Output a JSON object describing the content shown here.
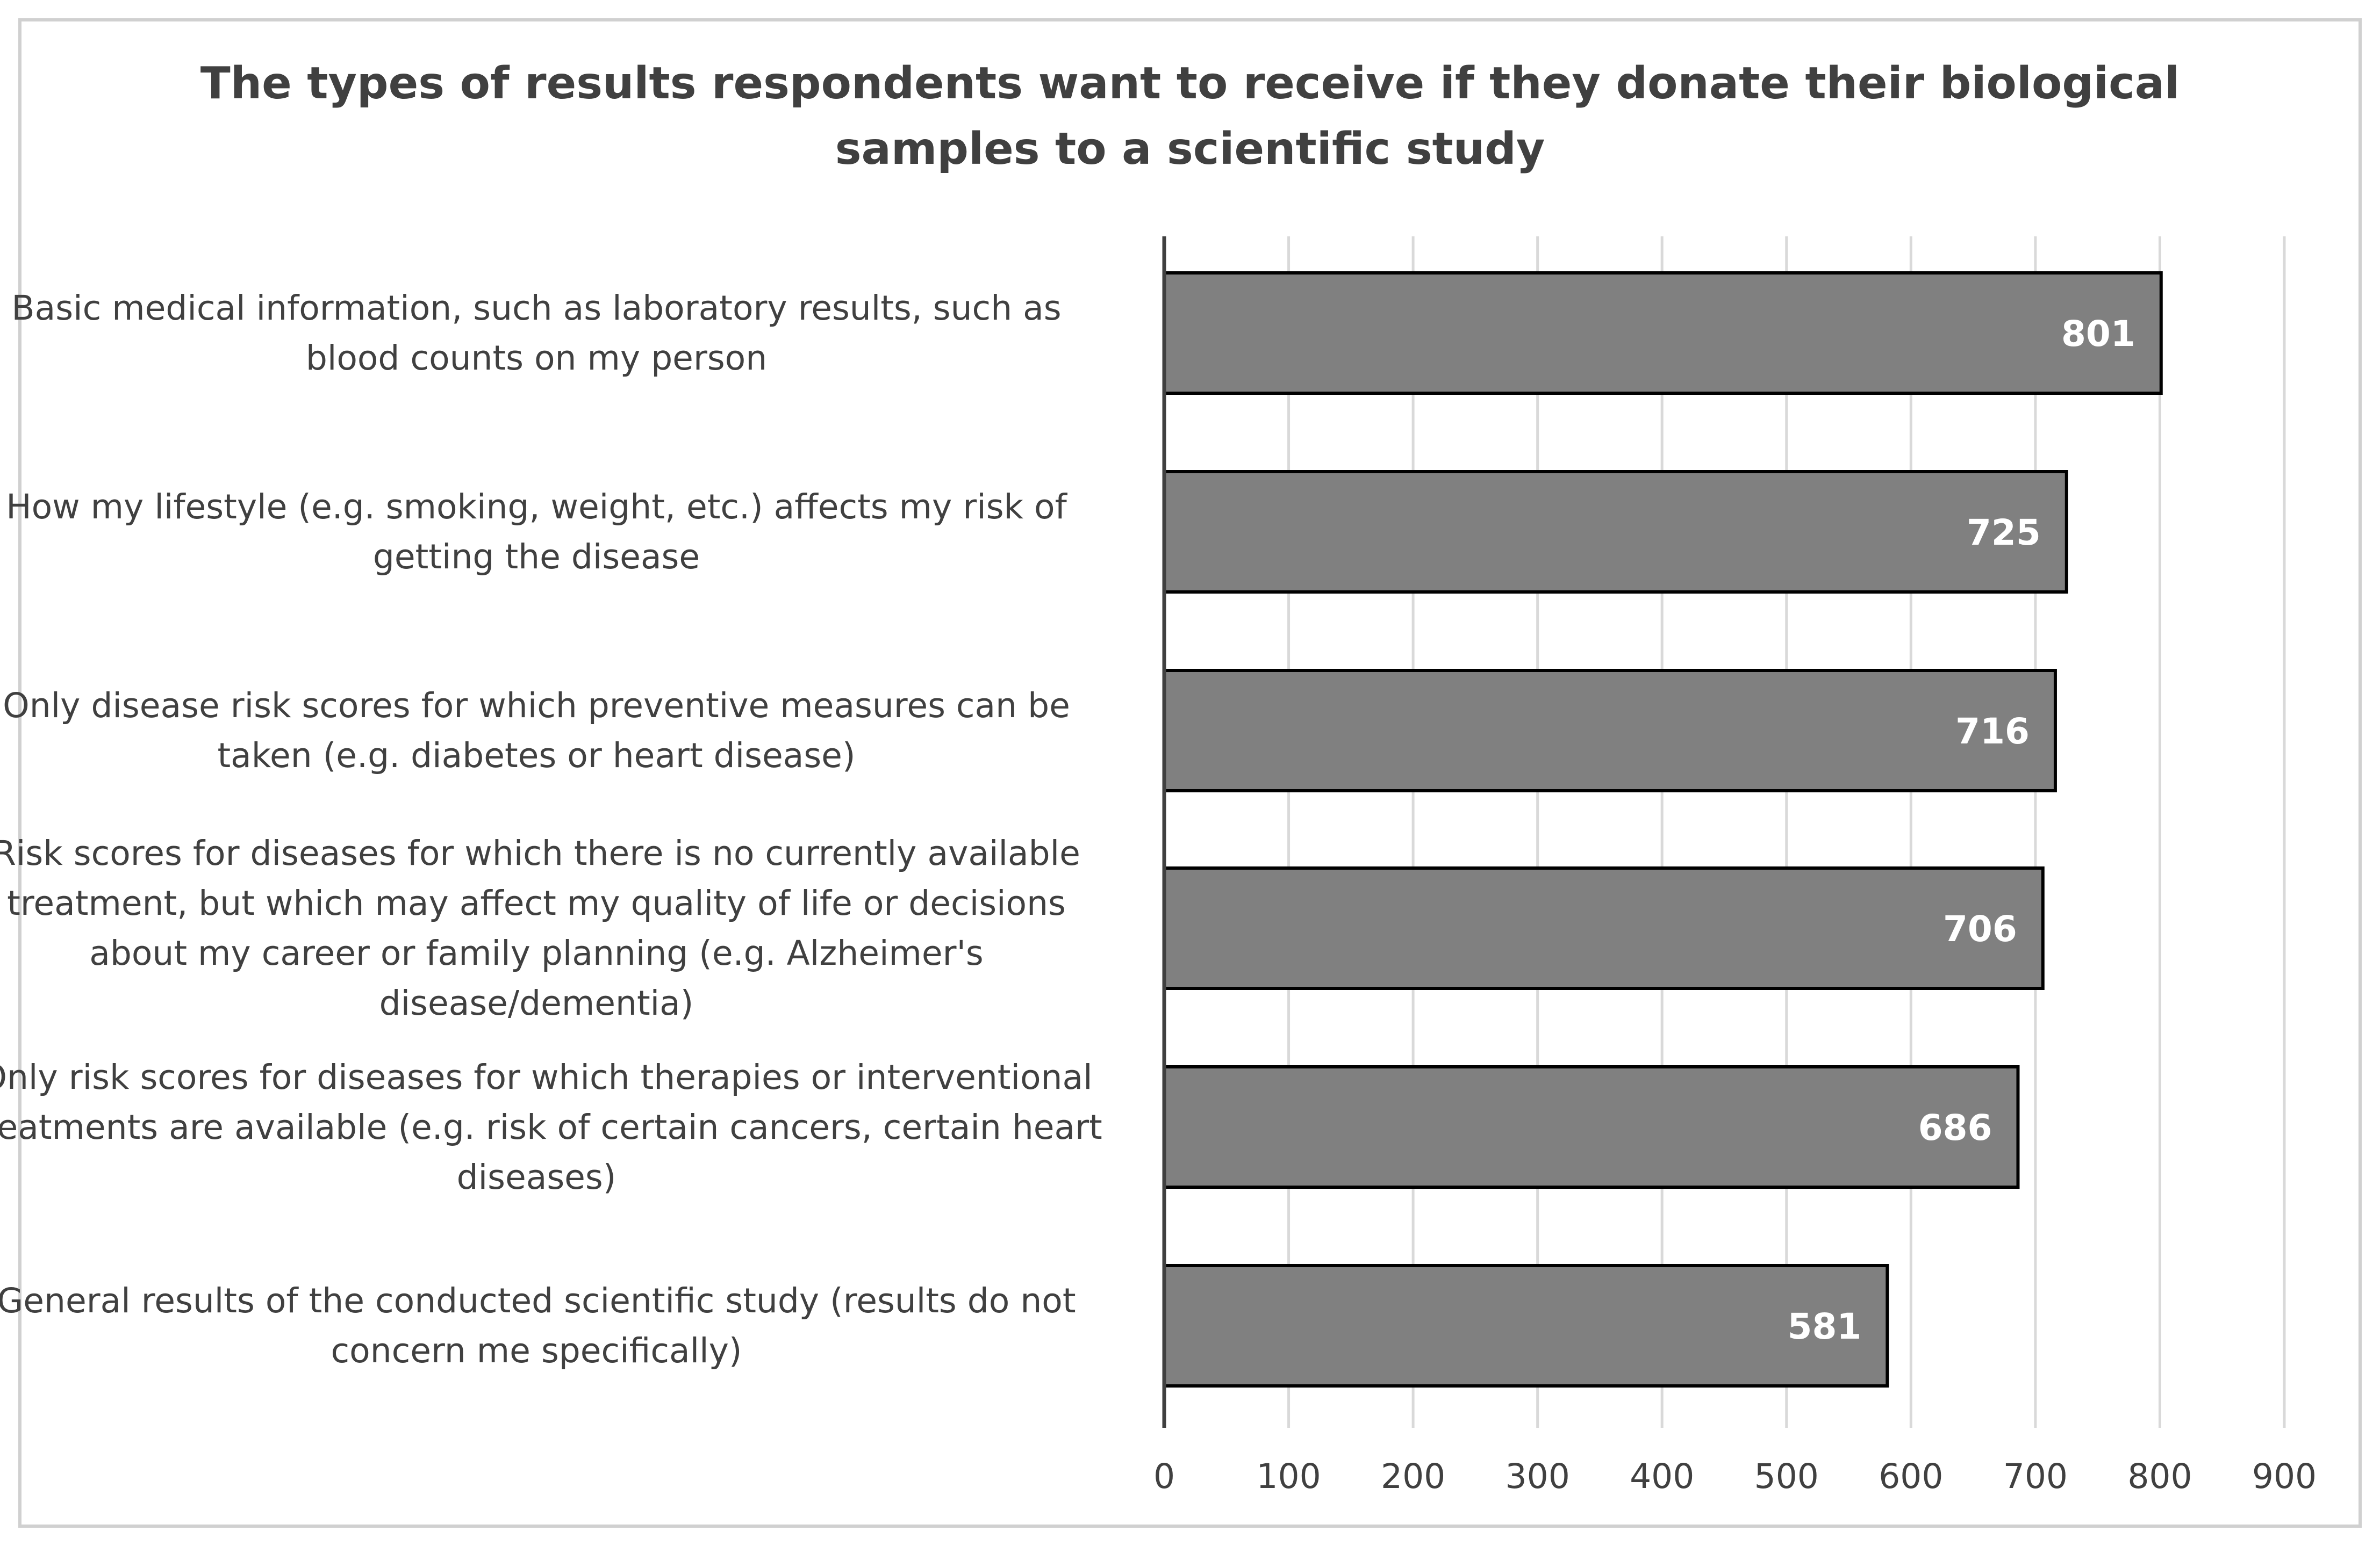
{
  "chart_data": {
    "type": "bar",
    "orientation": "horizontal",
    "title_lines": [
      "The types of results respondents want to receive if they donate their biological",
      "samples to a scientific study"
    ],
    "categories": [
      {
        "lines": [
          "Basic medical information, such as laboratory results, such as",
          "blood counts on my person"
        ]
      },
      {
        "lines": [
          "How my lifestyle (e.g. smoking, weight, etc.) affects my risk of",
          "getting the disease"
        ]
      },
      {
        "lines": [
          "Only disease risk scores for which preventive measures can be",
          "taken (e.g. diabetes or heart disease)"
        ]
      },
      {
        "lines": [
          "Risk scores for diseases for which there is no currently available",
          "treatment, but which may affect my quality of life or decisions",
          "about my career or family planning (e.g. Alzheimer's",
          "disease/dementia)"
        ]
      },
      {
        "lines": [
          "Only risk scores for diseases for which therapies or interventional",
          "treatments are available (e.g. risk of certain cancers, certain heart",
          "diseases)"
        ]
      },
      {
        "lines": [
          "General results of the conducted scientific study (results do not",
          "concern me specifically)"
        ]
      }
    ],
    "values": [
      801,
      725,
      716,
      706,
      686,
      581
    ],
    "data_labels": [
      "801",
      "725",
      "716",
      "706",
      "686",
      "581"
    ],
    "xlim": [
      0,
      900
    ],
    "x_ticks": [
      "0",
      "100",
      "200",
      "300",
      "400",
      "500",
      "600",
      "700",
      "800",
      "900"
    ],
    "grid": "vertical",
    "legend": "none",
    "colors": {
      "bar_fill": "#808080",
      "bar_stroke": "#000000",
      "grid": "#d9d9d9",
      "axis": "#404040",
      "text": "#404040",
      "value_label": "#ffffff"
    }
  }
}
